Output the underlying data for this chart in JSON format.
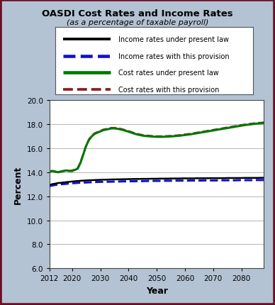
{
  "title": "OASDI Cost Rates and Income Rates",
  "subtitle": "(as a percentage of taxable payroll)",
  "xlabel": "Year",
  "ylabel": "Percent",
  "ylim": [
    6.0,
    20.0
  ],
  "yticks": [
    6.0,
    8.0,
    10.0,
    12.0,
    14.0,
    16.0,
    18.0,
    20.0
  ],
  "xlim": [
    2012,
    2088
  ],
  "xticks": [
    2012,
    2020,
    2030,
    2040,
    2050,
    2060,
    2070,
    2080
  ],
  "bg_color": "#b3c3d4",
  "plot_bg": "#ffffff",
  "border_color": "#6b0f25",
  "years": [
    2012,
    2013,
    2014,
    2015,
    2016,
    2017,
    2018,
    2019,
    2020,
    2021,
    2022,
    2023,
    2024,
    2025,
    2026,
    2027,
    2028,
    2029,
    2030,
    2031,
    2032,
    2033,
    2034,
    2035,
    2036,
    2037,
    2038,
    2039,
    2040,
    2041,
    2042,
    2043,
    2044,
    2045,
    2046,
    2047,
    2048,
    2049,
    2050,
    2051,
    2052,
    2053,
    2054,
    2055,
    2056,
    2057,
    2058,
    2059,
    2060,
    2061,
    2062,
    2063,
    2064,
    2065,
    2066,
    2067,
    2068,
    2069,
    2070,
    2071,
    2072,
    2073,
    2074,
    2075,
    2076,
    2077,
    2078,
    2079,
    2080,
    2081,
    2082,
    2083,
    2084,
    2085,
    2086,
    2087,
    2088
  ],
  "income_present_law": [
    12.93,
    13.01,
    13.05,
    13.1,
    13.12,
    13.15,
    13.18,
    13.2,
    13.23,
    13.25,
    13.27,
    13.29,
    13.3,
    13.32,
    13.33,
    13.34,
    13.35,
    13.36,
    13.37,
    13.38,
    13.38,
    13.39,
    13.4,
    13.4,
    13.41,
    13.41,
    13.42,
    13.42,
    13.43,
    13.43,
    13.44,
    13.44,
    13.44,
    13.45,
    13.45,
    13.45,
    13.46,
    13.46,
    13.46,
    13.47,
    13.47,
    13.47,
    13.47,
    13.48,
    13.48,
    13.48,
    13.48,
    13.49,
    13.49,
    13.49,
    13.49,
    13.49,
    13.5,
    13.5,
    13.5,
    13.5,
    13.5,
    13.51,
    13.51,
    13.51,
    13.51,
    13.51,
    13.51,
    13.52,
    13.52,
    13.52,
    13.52,
    13.52,
    13.52,
    13.53,
    13.53,
    13.53,
    13.53,
    13.53,
    13.53,
    13.54,
    13.54
  ],
  "income_provision": [
    12.85,
    12.9,
    12.94,
    12.98,
    13.0,
    13.02,
    13.04,
    13.07,
    13.09,
    13.1,
    13.12,
    13.13,
    13.14,
    13.15,
    13.16,
    13.17,
    13.18,
    13.19,
    13.2,
    13.2,
    13.21,
    13.21,
    13.22,
    13.22,
    13.23,
    13.23,
    13.24,
    13.24,
    13.25,
    13.25,
    13.25,
    13.26,
    13.26,
    13.26,
    13.27,
    13.27,
    13.27,
    13.28,
    13.28,
    13.28,
    13.28,
    13.29,
    13.29,
    13.29,
    13.29,
    13.3,
    13.3,
    13.3,
    13.3,
    13.3,
    13.31,
    13.31,
    13.31,
    13.31,
    13.31,
    13.32,
    13.32,
    13.32,
    13.32,
    13.32,
    13.32,
    13.33,
    13.33,
    13.33,
    13.33,
    13.33,
    13.33,
    13.34,
    13.34,
    13.34,
    13.34,
    13.34,
    13.34,
    13.35,
    13.35,
    13.35,
    13.35
  ],
  "cost_present_law": [
    14.05,
    14.1,
    14.05,
    14.0,
    14.05,
    14.1,
    14.15,
    14.1,
    14.1,
    14.2,
    14.3,
    14.8,
    15.5,
    16.2,
    16.7,
    17.0,
    17.2,
    17.3,
    17.4,
    17.5,
    17.55,
    17.6,
    17.65,
    17.65,
    17.62,
    17.58,
    17.52,
    17.45,
    17.38,
    17.3,
    17.22,
    17.15,
    17.1,
    17.05,
    17.02,
    17.0,
    16.98,
    16.96,
    16.95,
    16.95,
    16.95,
    16.96,
    16.97,
    16.98,
    17.0,
    17.02,
    17.04,
    17.07,
    17.1,
    17.13,
    17.16,
    17.2,
    17.24,
    17.28,
    17.32,
    17.36,
    17.4,
    17.44,
    17.48,
    17.52,
    17.56,
    17.6,
    17.64,
    17.68,
    17.72,
    17.76,
    17.8,
    17.84,
    17.88,
    17.92,
    17.95,
    17.98,
    18.01,
    18.04,
    18.06,
    18.08,
    18.1
  ],
  "cost_provision": [
    14.08,
    14.12,
    14.07,
    14.02,
    14.07,
    14.12,
    14.17,
    14.12,
    14.14,
    14.24,
    14.35,
    14.85,
    15.55,
    16.25,
    16.75,
    17.05,
    17.25,
    17.35,
    17.45,
    17.55,
    17.6,
    17.65,
    17.7,
    17.7,
    17.67,
    17.63,
    17.57,
    17.5,
    17.43,
    17.35,
    17.27,
    17.2,
    17.15,
    17.1,
    17.07,
    17.05,
    17.03,
    17.01,
    17.0,
    17.0,
    17.0,
    17.01,
    17.02,
    17.03,
    17.05,
    17.07,
    17.09,
    17.12,
    17.15,
    17.18,
    17.21,
    17.25,
    17.29,
    17.33,
    17.37,
    17.41,
    17.45,
    17.49,
    17.53,
    17.57,
    17.61,
    17.65,
    17.69,
    17.73,
    17.77,
    17.81,
    17.85,
    17.89,
    17.93,
    17.97,
    18.0,
    18.03,
    18.06,
    18.09,
    18.11,
    18.13,
    18.15
  ],
  "legend_entries": [
    {
      "label": "Income rates under present law",
      "color": "#000000",
      "linestyle": "solid",
      "linewidth": 1.8
    },
    {
      "label": "Income rates with this provision",
      "color": "#1111cc",
      "linestyle": "dashed",
      "linewidth": 2.2
    },
    {
      "label": "Cost rates under present law",
      "color": "#007700",
      "linestyle": "solid",
      "linewidth": 2.2
    },
    {
      "label": "Cost rates with this provision",
      "color": "#8b2020",
      "linestyle": "dashed",
      "linewidth": 1.8
    }
  ]
}
